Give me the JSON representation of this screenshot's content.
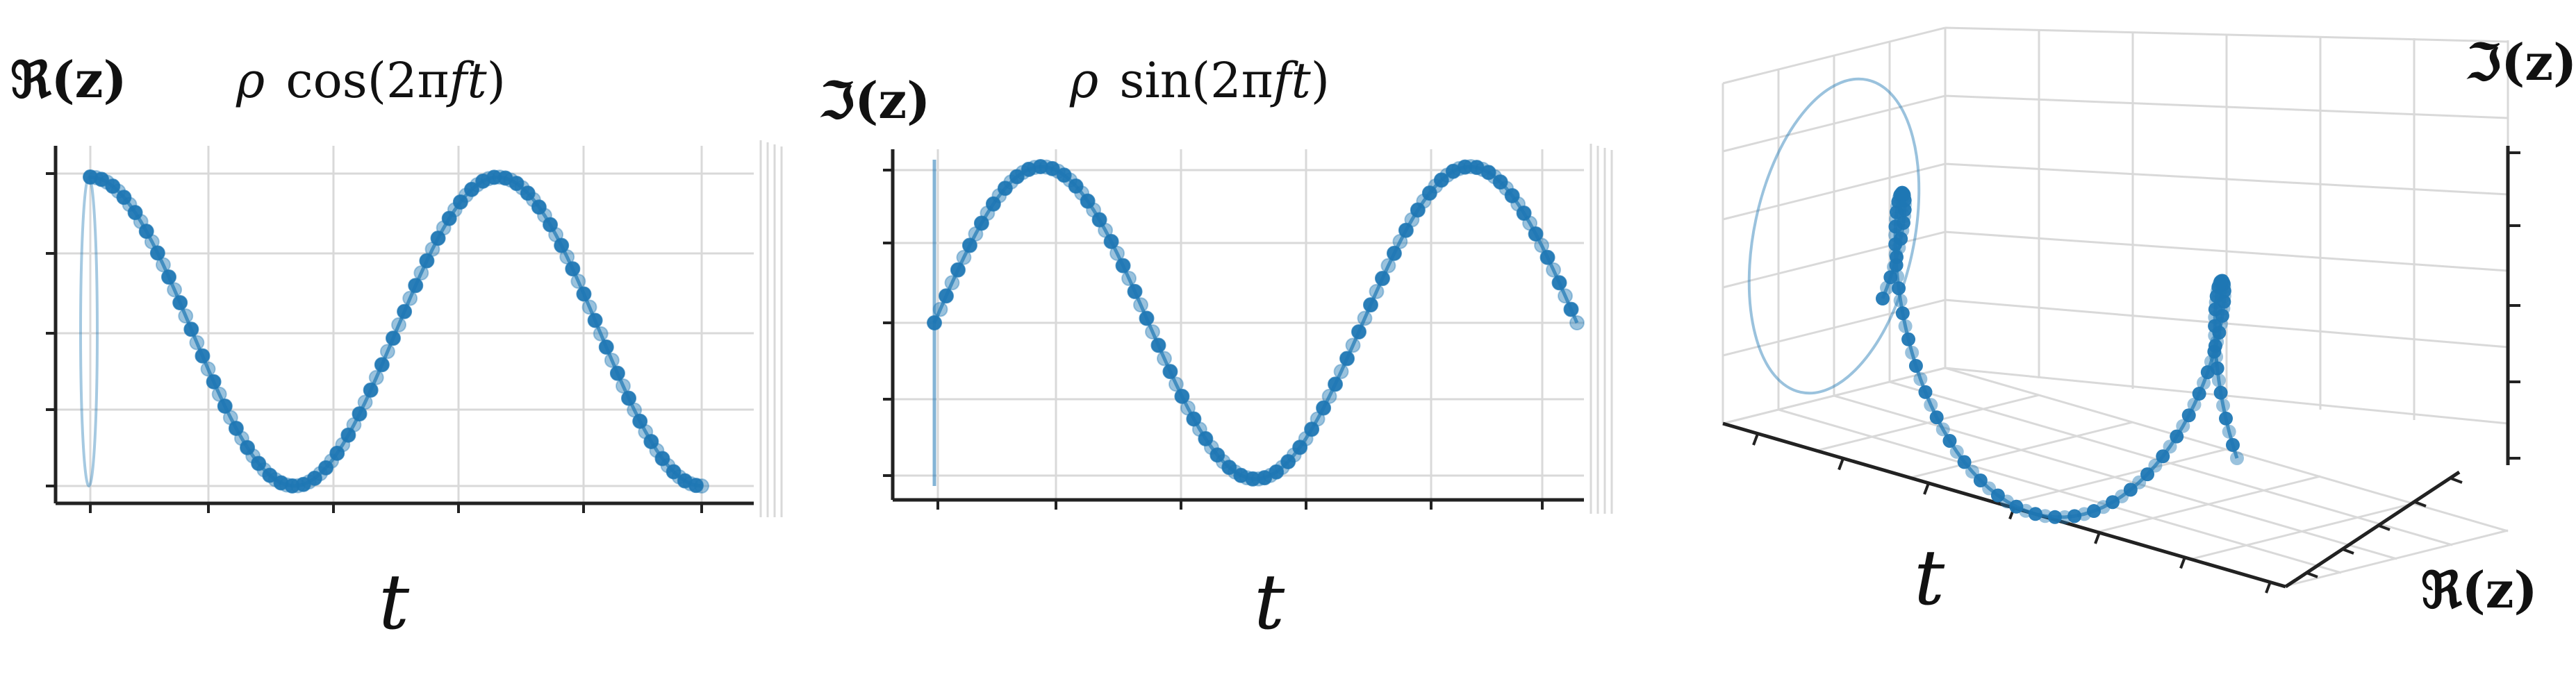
{
  "colors": {
    "series": "#1f77b4",
    "grid": "#d9d9d9",
    "axis": "#222222"
  },
  "chart_data": [
    {
      "type": "line",
      "title": "ρ cos(2πft)",
      "title_parts": {
        "rho": "ρ",
        "func": "cos(2π",
        "f": "f",
        "t": "t",
        "close": ")"
      },
      "ylabel": "ℜ(z)",
      "xlabel": "t",
      "series": [
        {
          "function": "cos",
          "cycles": 1.5,
          "points": 110,
          "values_range": [
            -1,
            1
          ]
        }
      ],
      "grid": true
    },
    {
      "type": "line",
      "title": "ρ sin(2πft)",
      "title_parts": {
        "rho": "ρ",
        "func": "sin(2π",
        "f": "f",
        "t": "t",
        "close": ")"
      },
      "ylabel": "ℑ(z)",
      "xlabel": "t",
      "series": [
        {
          "function": "sin",
          "cycles": 1.5,
          "points": 110,
          "values_range": [
            -1,
            1
          ]
        }
      ],
      "grid": true
    },
    {
      "type": "scatter",
      "xlabel": "t",
      "ylabel": "ℜ(z)",
      "zlabel": "ℑ(z)",
      "series": [
        {
          "function": "helix",
          "cycles": 1.5,
          "points": 110
        }
      ],
      "grid": true
    }
  ],
  "labels": {
    "p1_y": "ℜ(z)",
    "p1_x": "t",
    "p2_y": "ℑ(z)",
    "p2_x": "t",
    "p3_x": "t",
    "p3_re": "ℜ(z)",
    "p3_im": "ℑ(z)"
  }
}
